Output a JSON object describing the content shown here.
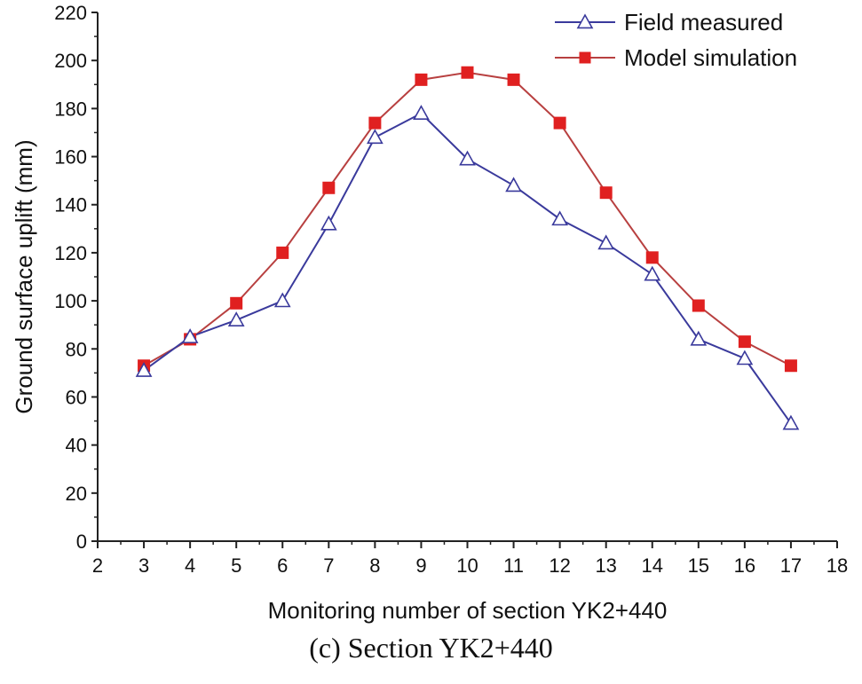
{
  "chart_data": {
    "type": "line",
    "xlabel": "Monitoring number of section YK2+440",
    "ylabel": "Ground surface uplift (mm)",
    "xlim": [
      2,
      18
    ],
    "ylim": [
      0,
      220
    ],
    "xticks": [
      2,
      3,
      4,
      5,
      6,
      7,
      8,
      9,
      10,
      11,
      12,
      13,
      14,
      15,
      16,
      17,
      18
    ],
    "yticks": [
      0,
      20,
      40,
      60,
      80,
      100,
      120,
      140,
      160,
      180,
      200,
      220
    ],
    "legend_position": "top-right",
    "x": [
      3,
      4,
      5,
      6,
      7,
      8,
      9,
      10,
      11,
      12,
      13,
      14,
      15,
      16,
      17
    ],
    "series": [
      {
        "name": "Field measured",
        "color": "#3a3a9c",
        "marker": "open-triangle",
        "values": [
          71,
          85,
          92,
          100,
          132,
          168,
          178,
          159,
          148,
          134,
          124,
          111,
          84,
          76,
          49
        ]
      },
      {
        "name": "Model simulation",
        "color": "#e02020",
        "line_color": "#b84040",
        "marker": "filled-square",
        "values": [
          73,
          84,
          99,
          120,
          147,
          174,
          192,
          195,
          192,
          174,
          145,
          118,
          98,
          83,
          73
        ]
      }
    ]
  },
  "caption": "(c) Section YK2+440"
}
